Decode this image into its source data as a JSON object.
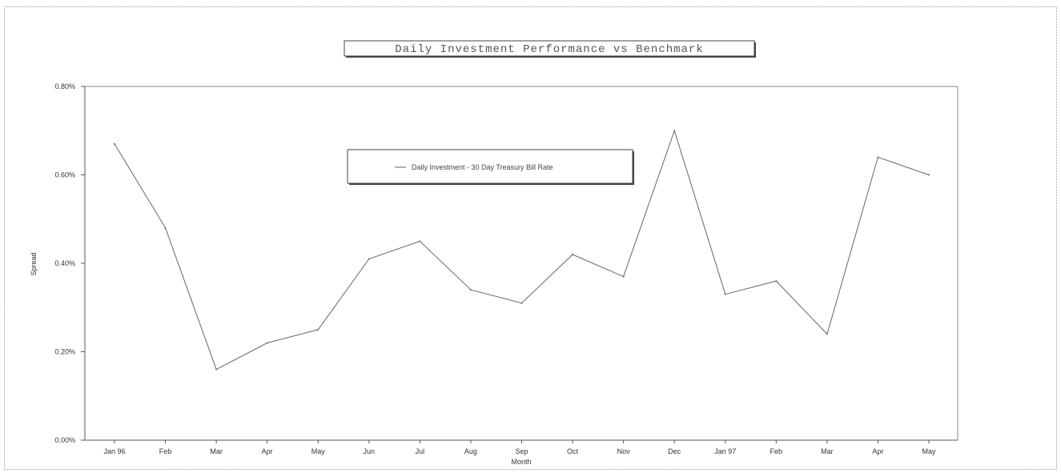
{
  "chart_data": {
    "type": "line",
    "title": "Daily Investment Performance vs Benchmark",
    "xlabel": "Month",
    "ylabel": "Spread",
    "categories": [
      "Jan 96",
      "Feb",
      "Mar",
      "Apr",
      "May",
      "Jun",
      "Jul",
      "Aug",
      "Sep",
      "Oct",
      "Nov",
      "Dec",
      "Jan 97",
      "Feb",
      "Mar",
      "Apr",
      "May"
    ],
    "series": [
      {
        "name": "Daily Investment - 30 Day Treasury Bill Rate",
        "values": [
          0.67,
          0.48,
          0.16,
          0.22,
          0.25,
          0.41,
          0.45,
          0.34,
          0.31,
          0.42,
          0.37,
          0.7,
          0.33,
          0.36,
          0.24,
          0.64,
          0.6
        ],
        "color": "#666666"
      }
    ],
    "ylim": [
      0,
      0.8
    ],
    "yticks": [
      0,
      0.2,
      0.4,
      0.6,
      0.8
    ],
    "ytick_labels": [
      "0.00%",
      "0.20%",
      "0.40%",
      "0.60%",
      "0.80%"
    ],
    "grid": false,
    "legend_position": "top-center"
  }
}
